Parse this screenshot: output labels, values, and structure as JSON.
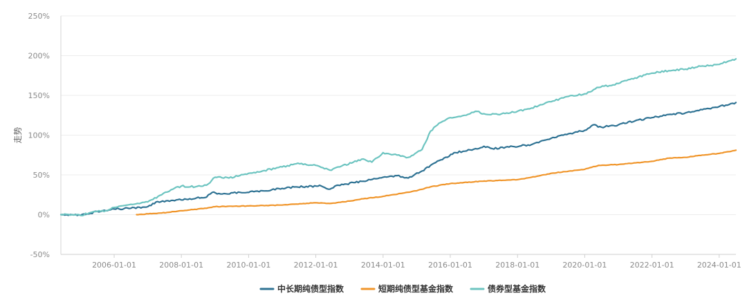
{
  "chart_data": {
    "type": "line",
    "ylabel": "走势",
    "y_unit": "%",
    "ylim": [
      -50,
      250
    ],
    "y_ticks": [
      -50,
      0,
      50,
      100,
      150,
      200,
      250
    ],
    "y_tick_labels": [
      "-50%",
      "0%",
      "50%",
      "100%",
      "150%",
      "200%",
      "250%"
    ],
    "x_range": [
      "2004-06-01",
      "2024-07-01"
    ],
    "x_ticks": [
      "2006-01-01",
      "2008-01-01",
      "2010-01-01",
      "2012-01-01",
      "2014-01-01",
      "2016-01-01",
      "2018-01-01",
      "2020-01-01",
      "2022-01-01",
      "2024-01-01"
    ],
    "grid": "horizontal",
    "legend": "bottom-center",
    "series": [
      {
        "name": "中长期纯债型指数",
        "color": "#2e7293",
        "points": [
          [
            "2004-06-01",
            0
          ],
          [
            "2004-10-01",
            0
          ],
          [
            "2005-01-01",
            -1
          ],
          [
            "2005-04-01",
            1
          ],
          [
            "2005-07-01",
            4
          ],
          [
            "2005-10-01",
            5
          ],
          [
            "2006-01-01",
            7
          ],
          [
            "2006-07-01",
            8
          ],
          [
            "2007-01-01",
            10
          ],
          [
            "2007-04-01",
            16
          ],
          [
            "2007-10-01",
            18
          ],
          [
            "2008-04-01",
            20
          ],
          [
            "2008-10-01",
            22
          ],
          [
            "2008-12-01",
            28
          ],
          [
            "2009-03-01",
            26
          ],
          [
            "2009-10-01",
            28
          ],
          [
            "2010-06-01",
            30
          ],
          [
            "2011-01-01",
            33
          ],
          [
            "2011-06-01",
            35
          ],
          [
            "2012-03-01",
            36
          ],
          [
            "2012-06-01",
            32
          ],
          [
            "2012-09-01",
            37
          ],
          [
            "2013-06-01",
            42
          ],
          [
            "2014-01-01",
            47
          ],
          [
            "2014-06-01",
            49
          ],
          [
            "2014-10-01",
            46
          ],
          [
            "2015-03-01",
            55
          ],
          [
            "2015-09-01",
            68
          ],
          [
            "2016-03-01",
            78
          ],
          [
            "2016-10-01",
            83
          ],
          [
            "2017-01-01",
            86
          ],
          [
            "2017-04-01",
            83
          ],
          [
            "2017-10-01",
            85
          ],
          [
            "2018-06-01",
            88
          ],
          [
            "2019-01-01",
            96
          ],
          [
            "2019-06-01",
            101
          ],
          [
            "2020-01-01",
            106
          ],
          [
            "2020-04-01",
            113
          ],
          [
            "2020-07-01",
            110
          ],
          [
            "2021-01-01",
            113
          ],
          [
            "2021-07-01",
            118
          ],
          [
            "2022-01-01",
            122
          ],
          [
            "2022-07-01",
            126
          ],
          [
            "2023-01-01",
            128
          ],
          [
            "2023-07-01",
            132
          ],
          [
            "2024-01-01",
            136
          ],
          [
            "2024-07-01",
            141
          ]
        ]
      },
      {
        "name": "短期纯债型基金指数",
        "color": "#f0952a",
        "points": [
          [
            "2006-09-01",
            0
          ],
          [
            "2007-06-01",
            2
          ],
          [
            "2008-01-01",
            5
          ],
          [
            "2008-10-01",
            8
          ],
          [
            "2009-01-01",
            10
          ],
          [
            "2010-01-01",
            11
          ],
          [
            "2011-01-01",
            12
          ],
          [
            "2012-01-01",
            15
          ],
          [
            "2012-06-01",
            14
          ],
          [
            "2013-01-01",
            17
          ],
          [
            "2013-06-01",
            20
          ],
          [
            "2014-01-01",
            23
          ],
          [
            "2015-01-01",
            30
          ],
          [
            "2015-06-01",
            35
          ],
          [
            "2016-01-01",
            39
          ],
          [
            "2016-12-01",
            42
          ],
          [
            "2017-06-01",
            43
          ],
          [
            "2018-01-01",
            44
          ],
          [
            "2018-06-01",
            47
          ],
          [
            "2019-01-01",
            52
          ],
          [
            "2020-01-01",
            57
          ],
          [
            "2020-06-01",
            62
          ],
          [
            "2021-01-01",
            63
          ],
          [
            "2022-01-01",
            67
          ],
          [
            "2022-07-01",
            71
          ],
          [
            "2023-01-01",
            72
          ],
          [
            "2023-07-01",
            75
          ],
          [
            "2024-01-01",
            77
          ],
          [
            "2024-07-01",
            81
          ]
        ]
      },
      {
        "name": "债券型基金指数",
        "color": "#6cc4c0",
        "points": [
          [
            "2004-06-01",
            0
          ],
          [
            "2004-10-01",
            0
          ],
          [
            "2005-01-01",
            -1
          ],
          [
            "2005-04-01",
            2
          ],
          [
            "2005-07-01",
            4
          ],
          [
            "2005-10-01",
            5
          ],
          [
            "2006-01-01",
            9
          ],
          [
            "2006-07-01",
            13
          ],
          [
            "2007-01-01",
            16
          ],
          [
            "2007-06-01",
            25
          ],
          [
            "2007-10-01",
            32
          ],
          [
            "2008-01-01",
            36
          ],
          [
            "2008-06-01",
            35
          ],
          [
            "2008-10-01",
            37
          ],
          [
            "2009-01-01",
            47
          ],
          [
            "2009-06-01",
            46
          ],
          [
            "2010-01-01",
            52
          ],
          [
            "2010-06-01",
            55
          ],
          [
            "2011-01-01",
            60
          ],
          [
            "2011-06-01",
            64
          ],
          [
            "2012-01-01",
            62
          ],
          [
            "2012-06-01",
            56
          ],
          [
            "2012-09-01",
            60
          ],
          [
            "2013-06-01",
            70
          ],
          [
            "2013-09-01",
            66
          ],
          [
            "2014-01-01",
            78
          ],
          [
            "2014-06-01",
            75
          ],
          [
            "2014-10-01",
            72
          ],
          [
            "2015-03-01",
            82
          ],
          [
            "2015-06-01",
            105
          ],
          [
            "2015-09-01",
            115
          ],
          [
            "2016-01-01",
            122
          ],
          [
            "2016-06-01",
            125
          ],
          [
            "2016-10-01",
            130
          ],
          [
            "2017-01-01",
            127
          ],
          [
            "2017-06-01",
            126
          ],
          [
            "2018-01-01",
            130
          ],
          [
            "2018-06-01",
            134
          ],
          [
            "2019-01-01",
            142
          ],
          [
            "2019-06-01",
            148
          ],
          [
            "2020-01-01",
            152
          ],
          [
            "2020-06-01",
            160
          ],
          [
            "2021-01-01",
            165
          ],
          [
            "2021-07-01",
            172
          ],
          [
            "2022-01-01",
            178
          ],
          [
            "2022-07-01",
            181
          ],
          [
            "2023-01-01",
            183
          ],
          [
            "2023-07-01",
            187
          ],
          [
            "2024-01-01",
            189
          ],
          [
            "2024-07-01",
            196
          ]
        ]
      }
    ]
  }
}
